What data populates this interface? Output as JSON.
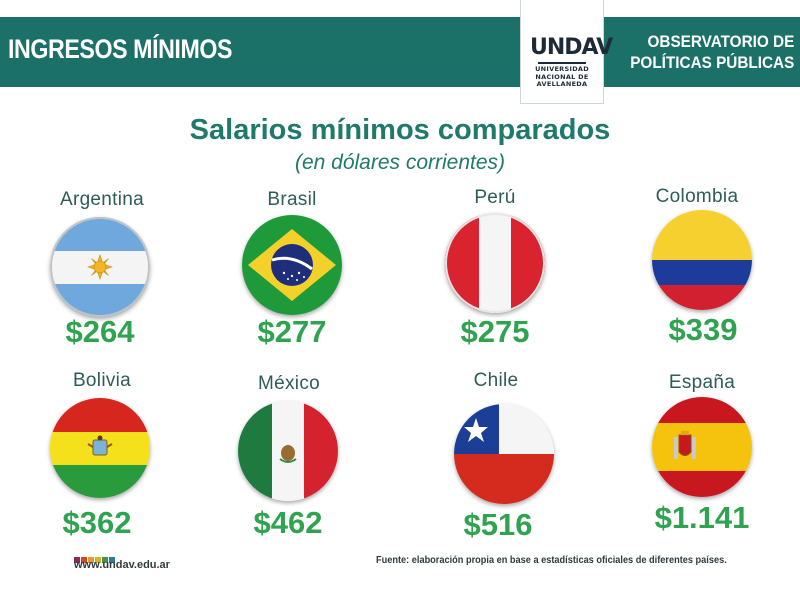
{
  "header": {
    "title": "INGRESOS MÍNIMOS",
    "org_line1": "OBSERVATORIO DE",
    "org_line2": "POLÍTICAS PÚBLICAS",
    "logo_text": "UNDAV",
    "logo_sub_line1": "UNIVERSIDAD",
    "logo_sub_line2": "NACIONAL DE",
    "logo_sub_line3": "AVELLANEDA"
  },
  "main": {
    "title": "Salarios mínimos comparados",
    "subtitle": "(en dólares corrientes)",
    "countries": [
      {
        "name": "Argentina",
        "value": "$264",
        "flag": "argentina-flag-icon"
      },
      {
        "name": "Brasil",
        "value": "$277",
        "flag": "brazil-flag-icon"
      },
      {
        "name": "Perú",
        "value": "$275",
        "flag": "peru-flag-icon"
      },
      {
        "name": "Colombia",
        "value": "$339",
        "flag": "colombia-flag-icon"
      },
      {
        "name": "Bolivia",
        "value": "$362",
        "flag": "bolivia-flag-icon"
      },
      {
        "name": "México",
        "value": "$462",
        "flag": "mexico-flag-icon"
      },
      {
        "name": "Chile",
        "value": "$516",
        "flag": "chile-flag-icon"
      },
      {
        "name": "España",
        "value": "$1.141",
        "flag": "spain-flag-icon"
      }
    ]
  },
  "footer": {
    "website": "www.undav.edu.ar",
    "source": "Fuente: elaboración propia en base a estadísticas oficiales de diferentes países.",
    "dot_colors": [
      "#8a2a5a",
      "#d8432f",
      "#e39b2a",
      "#d1b52b",
      "#4a8f4a",
      "#2a7d8f"
    ]
  },
  "colors": {
    "header_bg": "#1b7168",
    "title": "#1f7a6c",
    "price": "#2fa34f"
  }
}
